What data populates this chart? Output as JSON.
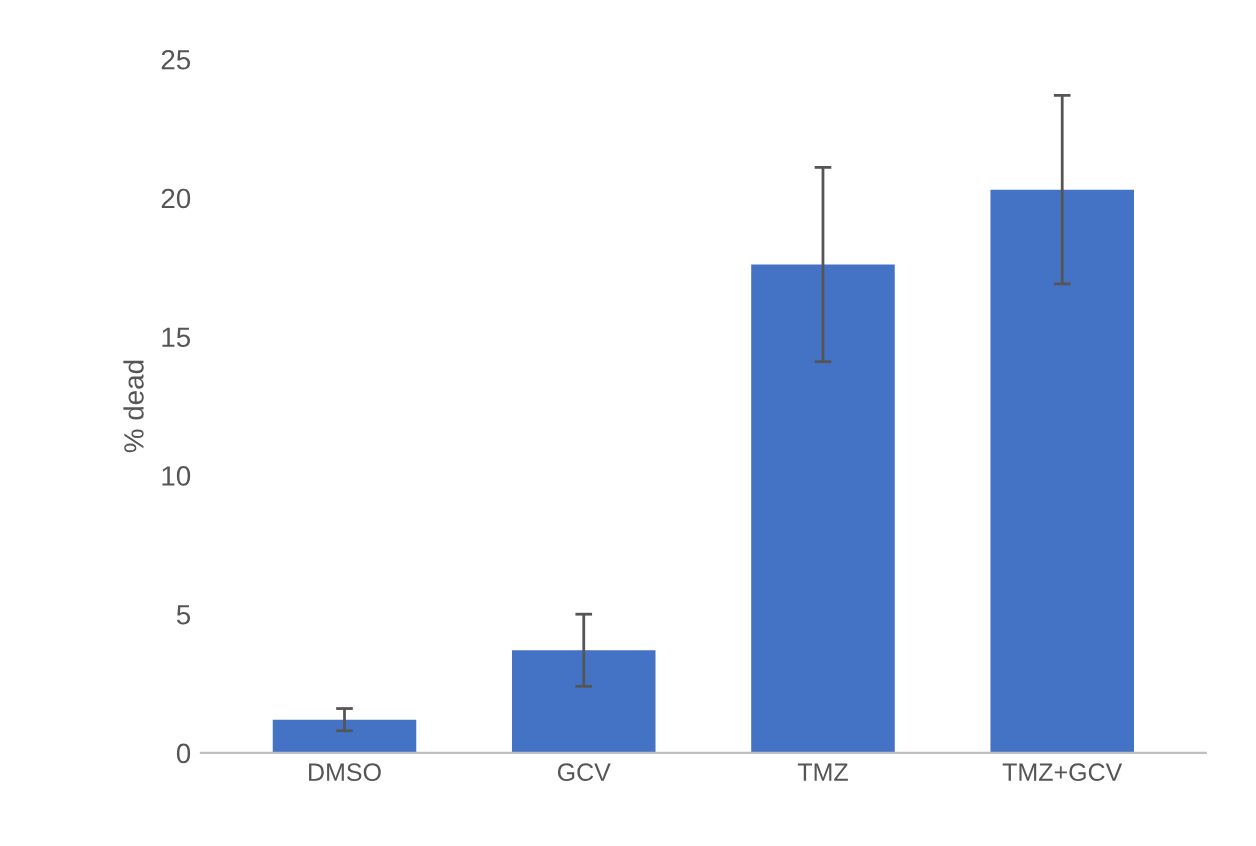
{
  "chart_data": {
    "type": "bar",
    "ylabel": "% dead",
    "categories": [
      "DMSO",
      "GCV",
      "TMZ",
      "TMZ+GCV"
    ],
    "values": [
      1.2,
      3.7,
      17.6,
      20.3
    ],
    "errors": [
      0.4,
      1.3,
      3.5,
      3.4
    ],
    "color": "#4472c4",
    "ylim": [
      0,
      25
    ],
    "yticks": [
      0,
      5,
      10,
      15,
      20,
      25
    ],
    "grid": false
  }
}
